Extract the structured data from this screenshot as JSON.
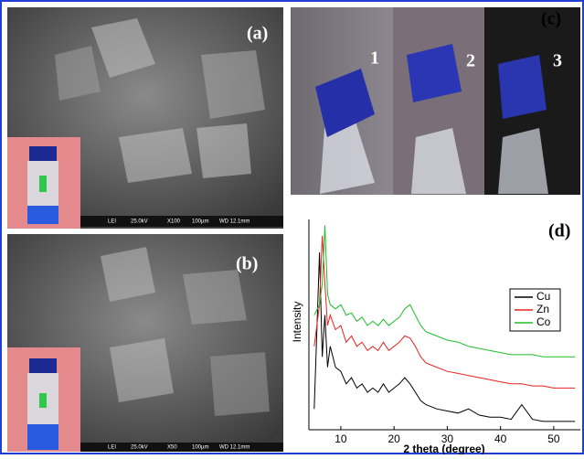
{
  "panels": {
    "a": {
      "label": "(a)",
      "scalebar": [
        "LEI",
        "25.0kV",
        "X100",
        "100µm",
        "WD 12.1mm"
      ]
    },
    "b": {
      "label": "(b)",
      "scalebar": [
        "LEI",
        "25.0kV",
        "X50",
        "100µm",
        "WD 12.1mm"
      ]
    },
    "c": {
      "label": "(c)",
      "numbers": [
        "1",
        "2",
        "3"
      ]
    },
    "d": {
      "label": "(d)"
    }
  },
  "chart_data": {
    "type": "line",
    "xlabel": "2 theta (degree)",
    "ylabel": "Intensity",
    "x": [
      5,
      6,
      6.5,
      7,
      7.5,
      8,
      9,
      10,
      11,
      12,
      13,
      14,
      15,
      16,
      17,
      18,
      19,
      20,
      21,
      22,
      23,
      24,
      25,
      26,
      28,
      30,
      32,
      34,
      36,
      38,
      40,
      42,
      44,
      46,
      48,
      50,
      52,
      54
    ],
    "series": [
      {
        "name": "Cu",
        "color": "#000000",
        "values": [
          10,
          85,
          35,
          55,
          30,
          40,
          30,
          28,
          22,
          25,
          20,
          22,
          18,
          20,
          18,
          22,
          18,
          20,
          22,
          25,
          22,
          18,
          14,
          12,
          10,
          9,
          8,
          10,
          7,
          6,
          6,
          5,
          12,
          5,
          4,
          4,
          4,
          4
        ]
      },
      {
        "name": "Zn",
        "color": "#e8231f",
        "values": [
          40,
          60,
          93,
          70,
          50,
          55,
          48,
          50,
          42,
          45,
          40,
          42,
          38,
          40,
          38,
          42,
          38,
          40,
          42,
          45,
          44,
          40,
          35,
          32,
          30,
          28,
          27,
          26,
          25,
          24,
          23,
          22,
          22,
          21,
          21,
          20,
          20,
          20
        ]
      },
      {
        "name": "Co",
        "color": "#1fbf2a",
        "values": [
          55,
          60,
          70,
          98,
          65,
          60,
          58,
          60,
          55,
          56,
          52,
          54,
          50,
          52,
          50,
          53,
          50,
          52,
          54,
          58,
          60,
          55,
          50,
          47,
          45,
          43,
          42,
          40,
          39,
          38,
          37,
          36,
          36,
          36,
          35,
          35,
          35,
          35
        ]
      }
    ],
    "xlim": [
      4,
      55
    ],
    "ylim": [
      0,
      100
    ],
    "xticks": [
      10,
      20,
      30,
      40,
      50
    ]
  }
}
